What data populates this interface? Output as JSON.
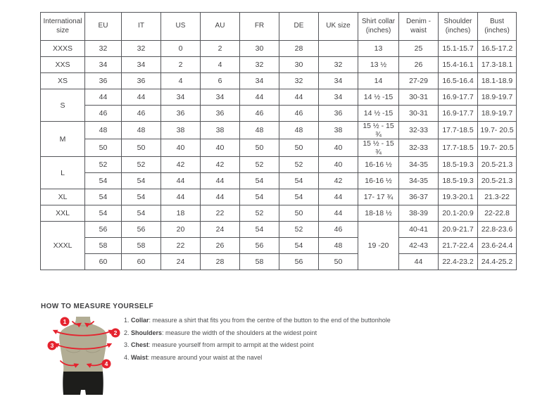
{
  "colors": {
    "accent_red": "#e5232e",
    "torso_tan": "#b2ad94",
    "shorts_black": "#1d1d1b",
    "table_border": "#55565a",
    "text": "#414042"
  },
  "size_table": {
    "headers": [
      "International size",
      "EU",
      "IT",
      "US",
      "AU",
      "FR",
      "DE",
      "UK size",
      "Shirt collar (inches)",
      "Denim - waist",
      "Shoulder (inches)",
      "Bust (inches)"
    ],
    "rows": [
      [
        "XXXS",
        "32",
        "32",
        "0",
        "2",
        "30",
        "28",
        "",
        "13",
        "25",
        "15.1-15.7",
        "16.5-17.2"
      ],
      [
        "XXS",
        "34",
        "34",
        "2",
        "4",
        "32",
        "30",
        "32",
        "13 ½",
        "26",
        "15.4-16.1",
        "17.3-18.1"
      ],
      [
        "XS",
        "36",
        "36",
        "4",
        "6",
        "34",
        "32",
        "34",
        "14",
        "27-29",
        "16.5-16.4",
        "18.1-18.9"
      ],
      [
        {
          "text": "S",
          "rowspan": 2
        },
        "44",
        "44",
        "34",
        "34",
        "44",
        "44",
        "34",
        "14 ½ -15",
        "30-31",
        "16.9-17.7",
        "18.9-19.7"
      ],
      [
        "46",
        "46",
        "36",
        "36",
        "46",
        "46",
        "36",
        "14 ½ -15",
        "30-31",
        "16.9-17.7",
        "18.9-19.7"
      ],
      [
        {
          "text": "M",
          "rowspan": 2
        },
        "48",
        "48",
        "38",
        "38",
        "48",
        "48",
        "38",
        "15 ½ - 15 ¾",
        "32-33",
        "17.7-18.5",
        "19.7- 20.5"
      ],
      [
        "50",
        "50",
        "40",
        "40",
        "50",
        "50",
        "40",
        "15 ½ - 15 ¾",
        "32-33",
        "17.7-18.5",
        "19.7- 20.5"
      ],
      [
        {
          "text": "L",
          "rowspan": 2
        },
        "52",
        "52",
        "42",
        "42",
        "52",
        "52",
        "40",
        "16-16 ½",
        "34-35",
        "18.5-19.3",
        "20.5-21.3"
      ],
      [
        "54",
        "54",
        "44",
        "44",
        "54",
        "54",
        "42",
        "16-16 ½",
        "34-35",
        "18.5-19.3",
        "20.5-21.3"
      ],
      [
        "XL",
        "54",
        "54",
        "44",
        "44",
        "54",
        "54",
        "44",
        "17- 17 ¾",
        "36-37",
        "19.3-20.1",
        "21.3-22"
      ],
      [
        "XXL",
        "54",
        "54",
        "18",
        "22",
        "52",
        "50",
        "44",
        "18-18 ½",
        "38-39",
        "20.1-20.9",
        "22-22.8"
      ],
      [
        {
          "text": "XXXL",
          "rowspan": 3
        },
        "56",
        "56",
        "20",
        "24",
        "54",
        "52",
        "46",
        {
          "text": "19 -20",
          "rowspan": 3
        },
        "40-41",
        "20.9-21.7",
        "22.8-23.6"
      ],
      [
        "58",
        "58",
        "22",
        "26",
        "56",
        "54",
        "48",
        "42-43",
        "21.7-22.4",
        "23.6-24.4"
      ],
      [
        "60",
        "60",
        "24",
        "28",
        "58",
        "56",
        "50",
        "44",
        "22.4-23.2",
        "24.4-25.2"
      ]
    ]
  },
  "how_to_measure": {
    "title": "HOW TO MEASURE YOURSELF",
    "steps": [
      {
        "num": "1.",
        "label": "Collar",
        "desc": ": measure a shirt that fits you from the centre of the button to the end of the buttonhole"
      },
      {
        "num": "2.",
        "label": "Shoulders",
        "desc": ": measure the width of the shoulders at the widest point"
      },
      {
        "num": "3.",
        "label": "Chest",
        "desc": ": measure yourself from armpit to armpit at the widest point"
      },
      {
        "num": "4.",
        "label": "Waist",
        "desc": ": measure around your waist at the navel"
      }
    ],
    "figure": {
      "badges": [
        "1",
        "2",
        "3",
        "4"
      ]
    }
  }
}
